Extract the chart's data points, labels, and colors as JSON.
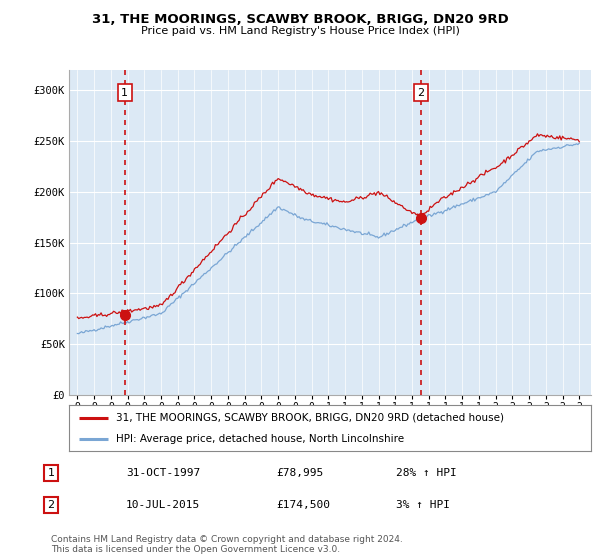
{
  "title": "31, THE MOORINGS, SCAWBY BROOK, BRIGG, DN20 9RD",
  "subtitle": "Price paid vs. HM Land Registry's House Price Index (HPI)",
  "legend_line1": "31, THE MOORINGS, SCAWBY BROOK, BRIGG, DN20 9RD (detached house)",
  "legend_line2": "HPI: Average price, detached house, North Lincolnshire",
  "annotation1_label": "1",
  "annotation1_date": "31-OCT-1997",
  "annotation1_price": "£78,995",
  "annotation1_hpi": "28% ↑ HPI",
  "annotation2_label": "2",
  "annotation2_date": "10-JUL-2015",
  "annotation2_price": "£174,500",
  "annotation2_hpi": "3% ↑ HPI",
  "footer": "Contains HM Land Registry data © Crown copyright and database right 2024.\nThis data is licensed under the Open Government Licence v3.0.",
  "sale1_year": 1997.83,
  "sale1_value": 78995,
  "sale2_year": 2015.53,
  "sale2_value": 174500,
  "hpi_color": "#7aa6d4",
  "price_color": "#cc1111",
  "dashed_line_color": "#cc1111",
  "ylim_min": 0,
  "ylim_max": 320000,
  "yticks": [
    0,
    50000,
    100000,
    150000,
    200000,
    250000,
    300000
  ],
  "ytick_labels": [
    "£0",
    "£50K",
    "£100K",
    "£150K",
    "£200K",
    "£250K",
    "£300K"
  ],
  "background_color": "#ffffff",
  "plot_bg_color": "#dce9f5",
  "xstart": 1995,
  "xend": 2025
}
